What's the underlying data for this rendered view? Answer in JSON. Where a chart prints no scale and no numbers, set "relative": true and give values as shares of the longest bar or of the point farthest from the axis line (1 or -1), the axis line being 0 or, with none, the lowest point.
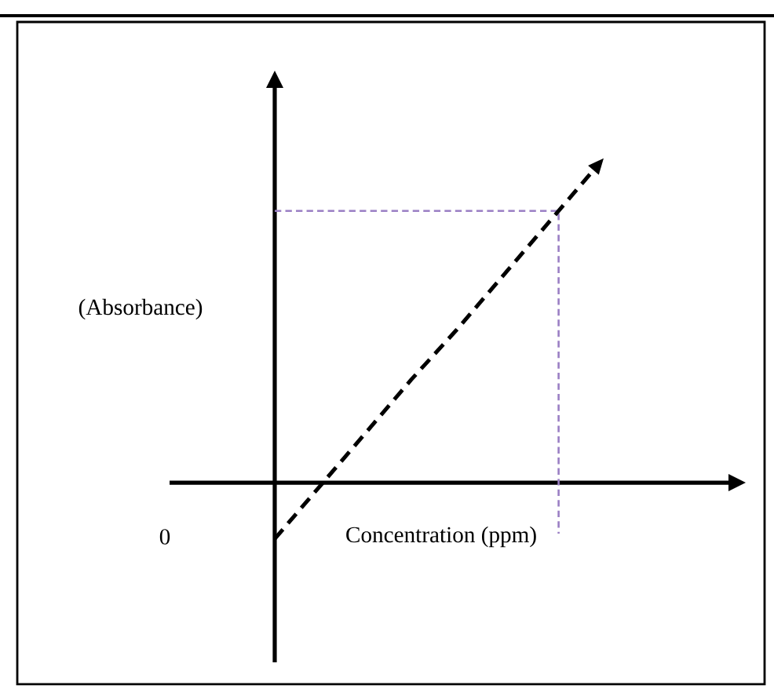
{
  "chart_data": {
    "type": "line",
    "relative": true,
    "xlabel": "Concentration (ppm)",
    "ylabel": "(Absorbance)",
    "annotations": [
      "0"
    ],
    "marker": "none",
    "categories": [
      null,
      null,
      null,
      null,
      null,
      null,
      null,
      null
    ],
    "series": [
      {
        "values": [
          -0.18,
          -0.01,
          0.16,
          0.33,
          0.49,
          0.66,
          0.83,
          1.0
        ],
        "color": "#000000",
        "line_style": "dashed"
      }
    ],
    "ref_lines": [
      {
        "axis": "y",
        "value": 0.87,
        "color": "#9a7fc4",
        "line_style": "dashed"
      }
    ]
  }
}
